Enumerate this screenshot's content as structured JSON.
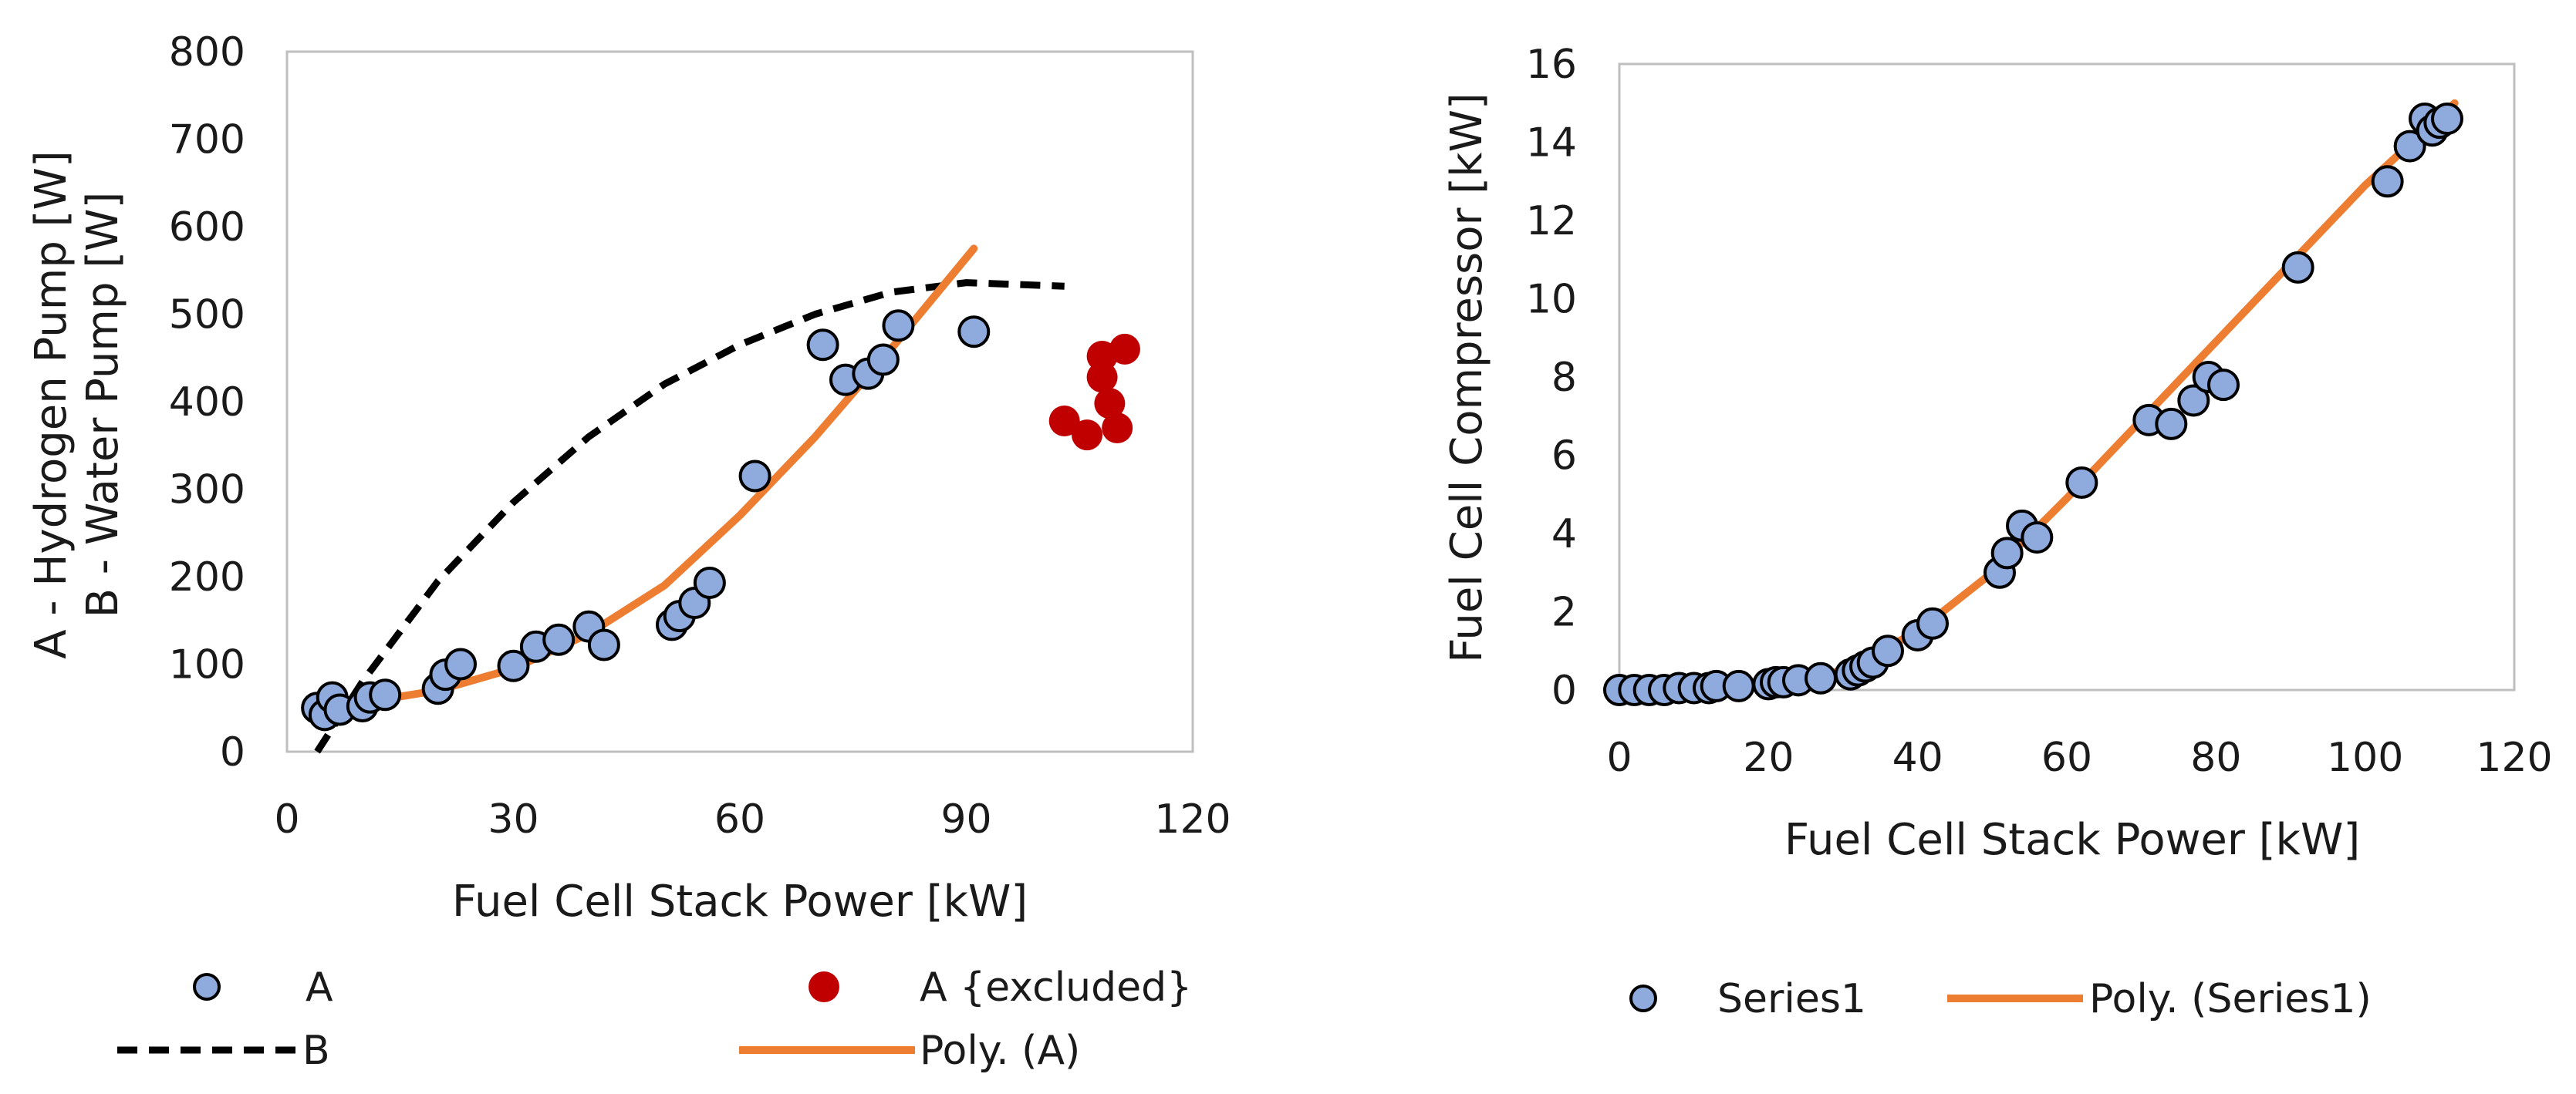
{
  "chart_data": [
    {
      "type": "scatter",
      "xlabel": "Fuel Cell Stack Power [kW]",
      "ylabel_lines": [
        "A - Hydrogen Pump [W]",
        "B - Water Pump [W]"
      ],
      "xlim": [
        0,
        120
      ],
      "ylim": [
        0,
        800
      ],
      "xticks": [
        0,
        30,
        60,
        90,
        120
      ],
      "yticks": [
        0,
        100,
        200,
        300,
        400,
        500,
        600,
        700,
        800
      ],
      "grid": false,
      "legend_position": "bottom",
      "colors": {
        "A": "#8faadc",
        "A_excluded": "#c00000",
        "B": "#000000",
        "PolyA": "#ed7d31"
      },
      "series": [
        {
          "name": "A",
          "style": "marker",
          "points": [
            [
              4,
              50
            ],
            [
              5,
              42
            ],
            [
              6,
              62
            ],
            [
              7,
              48
            ],
            [
              10,
              52
            ],
            [
              11,
              62
            ],
            [
              13,
              65
            ],
            [
              20,
              72
            ],
            [
              21,
              88
            ],
            [
              23,
              100
            ],
            [
              30,
              98
            ],
            [
              33,
              120
            ],
            [
              36,
              128
            ],
            [
              40,
              143
            ],
            [
              42,
              122
            ],
            [
              51,
              145
            ],
            [
              52,
              155
            ],
            [
              54,
              170
            ],
            [
              56,
              193
            ],
            [
              62,
              315
            ],
            [
              71,
              465
            ],
            [
              74,
              425
            ],
            [
              77,
              432
            ],
            [
              79,
              448
            ],
            [
              81,
              487
            ],
            [
              91,
              480
            ]
          ]
        },
        {
          "name": "A {excluded}",
          "style": "marker",
          "points": [
            [
              103,
              378
            ],
            [
              106,
              362
            ],
            [
              108,
              452
            ],
            [
              108,
              428
            ],
            [
              109,
              398
            ],
            [
              110,
              370
            ],
            [
              111,
              460
            ]
          ]
        },
        {
          "name": "B",
          "style": "dashed-line",
          "points": [
            [
              4,
              0
            ],
            [
              10,
              80
            ],
            [
              20,
              195
            ],
            [
              30,
              285
            ],
            [
              40,
              360
            ],
            [
              50,
              420
            ],
            [
              60,
              465
            ],
            [
              70,
              500
            ],
            [
              80,
              525
            ],
            [
              90,
              536
            ],
            [
              103,
              532
            ]
          ]
        },
        {
          "name": "Poly. (A)",
          "style": "line",
          "points": [
            [
              5,
              52
            ],
            [
              10,
              56
            ],
            [
              20,
              70
            ],
            [
              30,
              95
            ],
            [
              40,
              135
            ],
            [
              50,
              190
            ],
            [
              60,
              270
            ],
            [
              70,
              360
            ],
            [
              80,
              460
            ],
            [
              91,
              575
            ]
          ]
        }
      ],
      "legend": [
        "A",
        "A {excluded}",
        "B",
        "Poly. (A)"
      ]
    },
    {
      "type": "scatter",
      "xlabel": "Fuel Cell Stack Power [kW]",
      "ylabel": "Fuel Cell Compressor [kW]",
      "xlim": [
        0,
        120
      ],
      "ylim": [
        0,
        16
      ],
      "xticks": [
        0,
        20,
        40,
        60,
        80,
        100,
        120
      ],
      "yticks": [
        0,
        2,
        4,
        6,
        8,
        10,
        12,
        14,
        16
      ],
      "grid": false,
      "legend_position": "bottom",
      "colors": {
        "Series1": "#8faadc",
        "Poly": "#ed7d31"
      },
      "series": [
        {
          "name": "Series1",
          "style": "marker",
          "points": [
            [
              0,
              0
            ],
            [
              2,
              0
            ],
            [
              4,
              0
            ],
            [
              6,
              0
            ],
            [
              8,
              0.05
            ],
            [
              10,
              0.05
            ],
            [
              12,
              0.05
            ],
            [
              13,
              0.1
            ],
            [
              16,
              0.1
            ],
            [
              20,
              0.15
            ],
            [
              21,
              0.2
            ],
            [
              22,
              0.2
            ],
            [
              24,
              0.25
            ],
            [
              27,
              0.3
            ],
            [
              31,
              0.4
            ],
            [
              32,
              0.5
            ],
            [
              33,
              0.6
            ],
            [
              34,
              0.7
            ],
            [
              36,
              1.0
            ],
            [
              40,
              1.4
            ],
            [
              42,
              1.7
            ],
            [
              51,
              3.0
            ],
            [
              52,
              3.5
            ],
            [
              54,
              4.2
            ],
            [
              56,
              3.9
            ],
            [
              62,
              5.3
            ],
            [
              71,
              6.9
            ],
            [
              74,
              6.8
            ],
            [
              77,
              7.4
            ],
            [
              79,
              8.0
            ],
            [
              81,
              7.8
            ],
            [
              91,
              10.8
            ],
            [
              103,
              13.0
            ],
            [
              106,
              13.9
            ],
            [
              108,
              14.6
            ],
            [
              109,
              14.3
            ],
            [
              110,
              14.5
            ],
            [
              111,
              14.6
            ]
          ]
        },
        {
          "name": "Poly. (Series1)",
          "style": "line",
          "points": [
            [
              0,
              0.2
            ],
            [
              10,
              0.05
            ],
            [
              20,
              0.1
            ],
            [
              30,
              0.5
            ],
            [
              40,
              1.5
            ],
            [
              50,
              3.0
            ],
            [
              60,
              4.9
            ],
            [
              70,
              6.9
            ],
            [
              80,
              8.9
            ],
            [
              90,
              10.9
            ],
            [
              100,
              12.9
            ],
            [
              112,
              15.0
            ]
          ]
        }
      ],
      "legend": [
        "Series1",
        "Poly. (Series1)"
      ]
    }
  ]
}
